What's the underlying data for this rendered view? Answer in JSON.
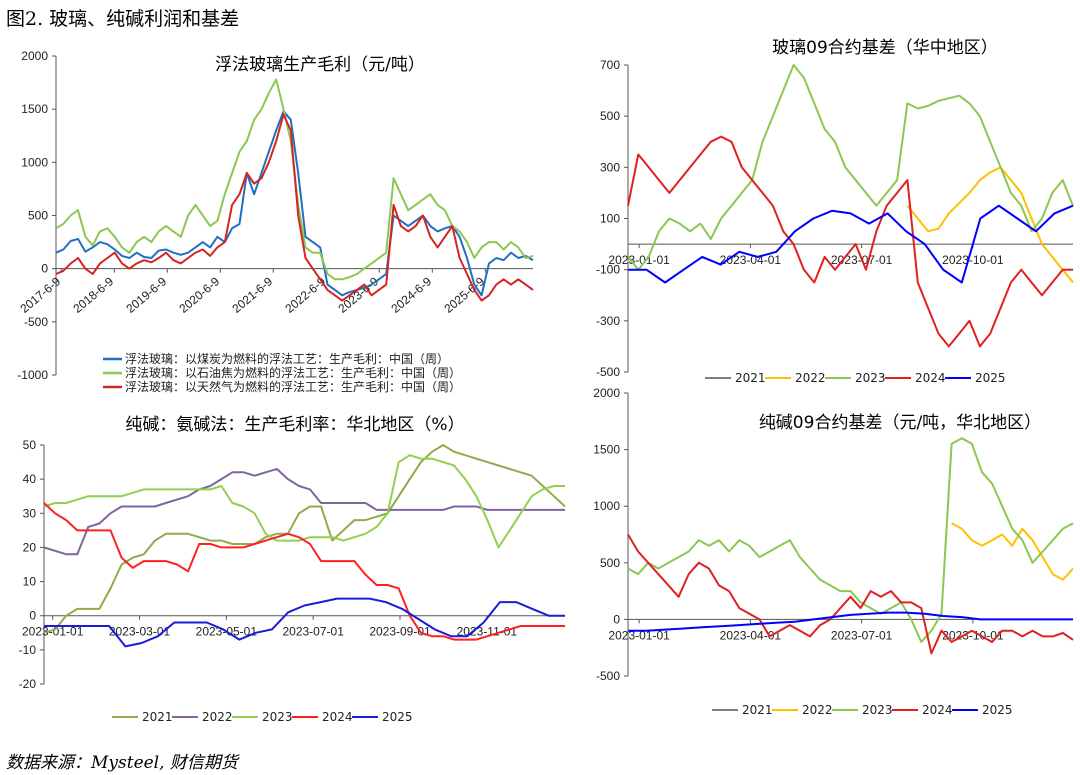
{
  "figure_title": "图2.  玻璃、纯碱利润和基差",
  "source": "数据来源：Mysteel, 财信期货",
  "chart_data": [
    {
      "id": "glass-profit",
      "type": "line",
      "title": "浮法玻璃生产毛利（元/吨）",
      "ylim": [
        -1000,
        2000
      ],
      "yticks": [
        "2000",
        "1500",
        "1000",
        "500",
        "0",
        "-500",
        "-1000"
      ],
      "xticks": [
        "2017-6-9",
        "2018-6-9",
        "2019-6-9",
        "2020-6-9",
        "2021-6-9",
        "2022-6-9",
        "2023-6-9",
        "2024-6-9",
        "2025-6-9"
      ],
      "series": [
        {
          "name": "浮法玻璃：以煤炭为燃料的浮法工艺：生产毛利：中国（周）",
          "color": "#1f6fc4",
          "values": [
            150,
            180,
            260,
            280,
            160,
            200,
            250,
            230,
            180,
            120,
            100,
            150,
            110,
            100,
            170,
            180,
            150,
            130,
            150,
            200,
            250,
            200,
            300,
            250,
            380,
            420,
            900,
            700,
            900,
            1100,
            1300,
            1480,
            1400,
            900,
            300,
            250,
            200,
            -150,
            -200,
            -250,
            -220,
            -200,
            -180,
            -150,
            -100,
            -50,
            500,
            450,
            400,
            450,
            500,
            400,
            350,
            380,
            400,
            300,
            100,
            -150,
            -250,
            50,
            100,
            80,
            150,
            100,
            120,
            80
          ]
        },
        {
          "name": "浮法玻璃：以石油焦为燃料的浮法工艺：生产毛利：中国（周）",
          "color": "#8cc751",
          "values": [
            380,
            420,
            500,
            550,
            300,
            220,
            350,
            380,
            300,
            200,
            150,
            250,
            300,
            250,
            350,
            400,
            350,
            300,
            500,
            600,
            500,
            400,
            450,
            700,
            900,
            1100,
            1200,
            1400,
            1500,
            1650,
            1780,
            1500,
            1200,
            600,
            200,
            150,
            150,
            -50,
            -100,
            -100,
            -80,
            -50,
            0,
            50,
            100,
            150,
            850,
            700,
            550,
            600,
            650,
            700,
            600,
            550,
            400,
            350,
            250,
            100,
            200,
            250,
            250,
            180,
            250,
            200,
            100,
            120
          ]
        },
        {
          "name": "浮法玻璃：以天然气为燃料的浮法工艺：生产毛利：中国（周）",
          "color": "#d62424",
          "values": [
            -50,
            -20,
            50,
            100,
            0,
            -50,
            50,
            100,
            150,
            50,
            0,
            50,
            80,
            60,
            100,
            150,
            80,
            50,
            100,
            150,
            180,
            120,
            200,
            250,
            600,
            700,
            900,
            800,
            850,
            1000,
            1200,
            1450,
            1300,
            500,
            100,
            0,
            -100,
            -200,
            -250,
            -300,
            -250,
            -200,
            -150,
            -250,
            -200,
            -150,
            600,
            400,
            350,
            400,
            500,
            300,
            200,
            300,
            400,
            100,
            -50,
            -200,
            -300,
            -250,
            -150,
            -100,
            -150,
            -100,
            -150,
            -200
          ]
        }
      ]
    },
    {
      "id": "glass-basis",
      "type": "line",
      "title": "玻璃09合约基差（华中地区）",
      "ylim": [
        -500,
        700
      ],
      "yticks": [
        "700",
        "500",
        "300",
        "100",
        "-100",
        "-300",
        "-500"
      ],
      "xticks": [
        "2023-01-01",
        "2023-04-01",
        "2023-07-01",
        "2023-10-01"
      ],
      "series": [
        {
          "name": "2021",
          "color": "#7f7f7f",
          "values": []
        },
        {
          "name": "2022",
          "color": "#ffc000",
          "values": [
            null,
            null,
            null,
            null,
            null,
            null,
            null,
            null,
            null,
            null,
            null,
            null,
            null,
            null,
            null,
            null,
            null,
            null,
            null,
            null,
            null,
            null,
            null,
            null,
            null,
            null,
            null,
            150,
            100,
            50,
            60,
            120,
            160,
            200,
            250,
            280,
            300,
            250,
            200,
            100,
            0,
            -50,
            -100,
            -150
          ]
        },
        {
          "name": "2023",
          "color": "#8cc751",
          "values": [
            -50,
            -100,
            -50,
            50,
            100,
            80,
            50,
            80,
            20,
            100,
            150,
            200,
            250,
            400,
            500,
            600,
            700,
            650,
            550,
            450,
            400,
            300,
            250,
            200,
            150,
            200,
            250,
            550,
            530,
            540,
            560,
            570,
            580,
            550,
            500,
            400,
            300,
            200,
            150,
            50,
            100,
            200,
            250,
            150
          ]
        },
        {
          "name": "2024",
          "color": "#e02020",
          "values": [
            150,
            350,
            300,
            250,
            200,
            250,
            300,
            350,
            400,
            420,
            400,
            300,
            250,
            200,
            150,
            50,
            0,
            -100,
            -150,
            -50,
            -100,
            -50,
            0,
            -100,
            50,
            150,
            200,
            250,
            -150,
            -250,
            -350,
            -400,
            -350,
            -300,
            -400,
            -350,
            -250,
            -150,
            -100,
            -150,
            -200,
            -150,
            -100,
            -100
          ]
        },
        {
          "name": "2025",
          "color": "#0000ff",
          "values": [
            -100,
            -100,
            -150,
            -100,
            -50,
            -80,
            -30,
            -50,
            -30,
            50,
            100,
            130,
            120,
            80,
            120,
            50,
            0,
            -100,
            -150,
            100,
            150,
            100,
            50,
            120,
            150
          ]
        }
      ]
    },
    {
      "id": "soda-profit-rate",
      "type": "line",
      "title": "纯碱：氨碱法：生产毛利率：华北地区（%）",
      "ylim": [
        -20,
        50
      ],
      "yticks": [
        "50",
        "40",
        "30",
        "20",
        "10",
        "0",
        "-10",
        "-20"
      ],
      "xticks": [
        "2023-01-01",
        "2023-03-01",
        "2023-05-01",
        "2023-07-01",
        "2023-09-01",
        "2023-11-01"
      ],
      "series": [
        {
          "name": "2021",
          "color": "#8fac4a",
          "values": [
            -5,
            -4,
            0,
            2,
            2,
            2,
            8,
            15,
            17,
            18,
            22,
            24,
            24,
            24,
            23,
            22,
            22,
            21,
            21,
            21,
            23,
            24,
            24,
            30,
            32,
            32,
            22,
            25,
            28,
            28,
            29,
            30,
            35,
            40,
            45,
            48,
            50,
            48,
            47,
            46,
            45,
            44,
            43,
            42,
            41,
            38,
            35,
            32
          ]
        },
        {
          "name": "2022",
          "color": "#8064a2",
          "values": [
            20,
            19,
            18,
            18,
            26,
            27,
            30,
            32,
            32,
            32,
            32,
            33,
            34,
            35,
            37,
            38,
            40,
            42,
            42,
            41,
            42,
            43,
            40,
            38,
            37,
            33,
            33,
            33,
            33,
            33,
            31,
            31,
            31,
            31,
            31,
            31,
            31,
            32,
            32,
            32,
            31,
            31,
            31,
            31,
            31,
            31,
            31,
            31
          ]
        },
        {
          "name": "2023",
          "color": "#92d050",
          "values": [
            32,
            33,
            33,
            34,
            35,
            35,
            35,
            35,
            36,
            37,
            37,
            37,
            37,
            37,
            37,
            37,
            38,
            33,
            32,
            30,
            24,
            22,
            22,
            22,
            23,
            23,
            23,
            22,
            23,
            24,
            26,
            30,
            45,
            47,
            46,
            46,
            45,
            44,
            40,
            35,
            28,
            20,
            25,
            30,
            35,
            37,
            38,
            38
          ]
        },
        {
          "name": "2024",
          "color": "#ff2020",
          "values": [
            33,
            30,
            28,
            25,
            25,
            25,
            25,
            17,
            14,
            16,
            16,
            16,
            15,
            13,
            21,
            21,
            20,
            20,
            20,
            21,
            22,
            23,
            24,
            23,
            21,
            16,
            16,
            16,
            16,
            12,
            9,
            9,
            8,
            0,
            -5,
            -6,
            -6,
            -7,
            -7,
            -7,
            -6,
            -5,
            -4,
            -3,
            -3,
            -3,
            -3,
            -3
          ]
        },
        {
          "name": "2025",
          "color": "#1c1cd6",
          "values": [
            -3,
            -3,
            -3,
            -3,
            -3,
            -9,
            -8,
            -6,
            -2,
            -2,
            -2,
            -4,
            -7,
            -5,
            -4,
            1,
            3,
            4,
            5,
            5,
            5,
            4,
            2,
            -1,
            -4,
            -6,
            -6,
            -2,
            4,
            4,
            2,
            0,
            0
          ]
        }
      ]
    },
    {
      "id": "soda-basis",
      "type": "line",
      "title": "纯碱09合约基差（元/吨，华北地区）",
      "ylim": [
        -500,
        2000
      ],
      "yticks": [
        "2000",
        "1500",
        "1000",
        "500",
        "0",
        "-500"
      ],
      "xticks": [
        "2023-01-01",
        "2023-04-01",
        "2023-07-01",
        "2023-10-01"
      ],
      "series": [
        {
          "name": "2021",
          "color": "#7f7f7f",
          "values": []
        },
        {
          "name": "2022",
          "color": "#ffc000",
          "values": [
            null,
            null,
            null,
            null,
            null,
            null,
            null,
            null,
            null,
            null,
            null,
            null,
            null,
            null,
            null,
            null,
            null,
            null,
            null,
            null,
            null,
            null,
            null,
            null,
            null,
            null,
            null,
            null,
            null,
            null,
            null,
            null,
            850,
            800,
            700,
            650,
            700,
            750,
            650,
            800,
            700,
            550,
            400,
            350,
            450
          ]
        },
        {
          "name": "2023",
          "color": "#8cc751",
          "values": [
            450,
            400,
            500,
            450,
            500,
            550,
            600,
            700,
            650,
            700,
            600,
            700,
            650,
            550,
            600,
            650,
            700,
            550,
            450,
            350,
            300,
            250,
            250,
            150,
            100,
            50,
            100,
            150,
            0,
            -200,
            -100,
            50,
            1550,
            1600,
            1550,
            1300,
            1200,
            1000,
            800,
            700,
            500,
            600,
            700,
            800,
            850
          ]
        },
        {
          "name": "2024",
          "color": "#e02020",
          "values": [
            750,
            600,
            500,
            400,
            300,
            200,
            400,
            500,
            450,
            300,
            250,
            100,
            50,
            0,
            -150,
            -100,
            -50,
            -100,
            -150,
            -50,
            0,
            100,
            200,
            100,
            250,
            200,
            250,
            150,
            150,
            100,
            -300,
            -100,
            -200,
            -150,
            -100,
            -150,
            -200,
            -100,
            -100,
            -150,
            -100,
            -150,
            -150,
            -120,
            -180
          ]
        },
        {
          "name": "2025",
          "color": "#0000ff",
          "values": [
            -100,
            -100,
            -90,
            -80,
            -70,
            -60,
            -50,
            -40,
            -30,
            -20,
            0,
            20,
            40,
            50,
            60,
            60,
            50,
            30,
            20,
            0,
            0,
            0,
            0,
            0,
            0
          ]
        }
      ]
    }
  ]
}
